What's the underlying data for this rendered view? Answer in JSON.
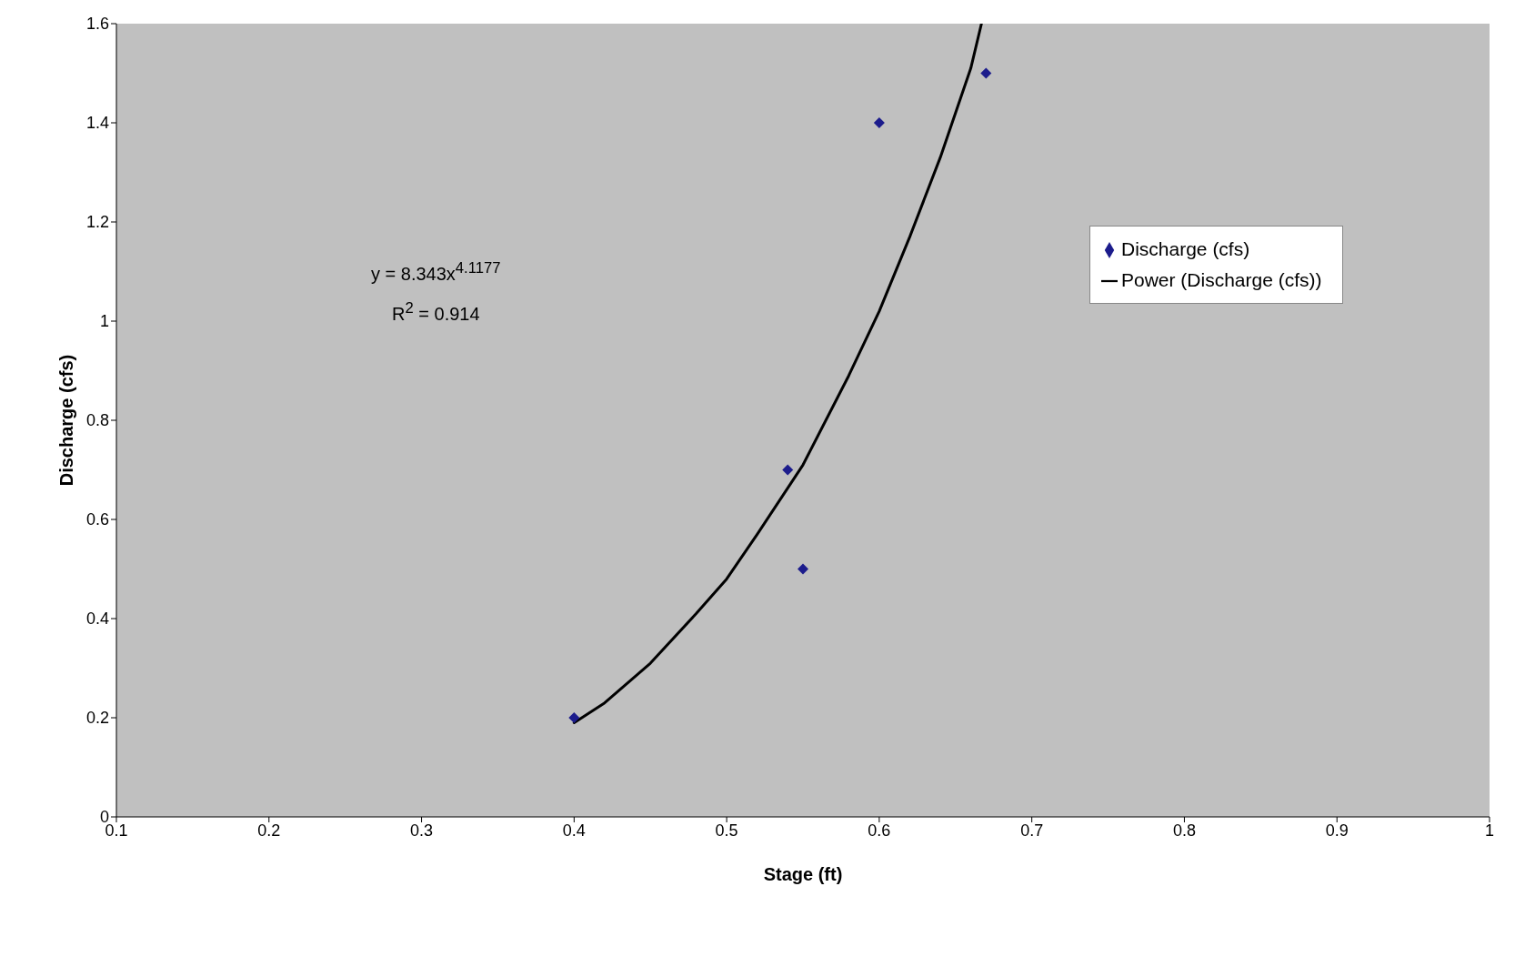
{
  "chart_data": {
    "type": "scatter",
    "xlabel": "Stage (ft)",
    "ylabel": "Discharge (cfs)",
    "xlim": [
      0.1,
      1
    ],
    "xticks": [
      0.1,
      0.2,
      0.3,
      0.4,
      0.5,
      0.6,
      0.7,
      0.8,
      0.9,
      1
    ],
    "ylim": [
      0,
      1.6
    ],
    "yticks": [
      0,
      0.2,
      0.4,
      0.6,
      0.8,
      1,
      1.2,
      1.4,
      1.6
    ],
    "legend": "right",
    "marker": "diamond",
    "series": [
      {
        "name": "Discharge (cfs)",
        "color": "#1c1c8c",
        "x": [
          0.4,
          0.54,
          0.55,
          0.6,
          0.67
        ],
        "values": [
          0.2,
          0.7,
          0.5,
          1.4,
          1.5
        ]
      },
      {
        "name": "Power (Discharge (cfs))",
        "type": "line",
        "color": "#000000",
        "marker": "none",
        "line_style": "solid",
        "x": [
          0.4,
          0.42,
          0.45,
          0.48,
          0.5,
          0.52,
          0.55,
          0.58,
          0.6,
          0.62,
          0.64,
          0.66,
          0.667
        ],
        "values": [
          0.19,
          0.23,
          0.31,
          0.41,
          0.48,
          0.57,
          0.71,
          0.89,
          1.02,
          1.17,
          1.33,
          1.51,
          1.6
        ]
      }
    ],
    "annotations": [
      "y = 8.343x$^{4.1177}$",
      "R$^{2}$ = 0.914"
    ]
  }
}
